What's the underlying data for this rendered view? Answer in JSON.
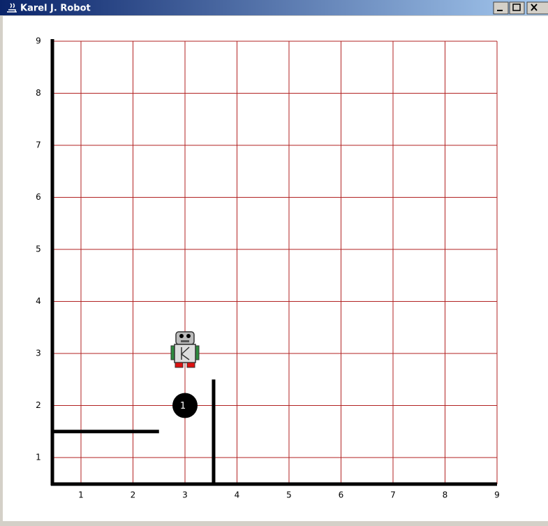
{
  "window": {
    "title": "Karel J. Robot"
  },
  "world": {
    "street_labels": [
      1,
      2,
      3,
      4,
      5,
      6,
      7,
      8,
      9
    ],
    "avenue_labels": [
      1,
      2,
      3,
      4,
      5,
      6,
      7,
      8,
      9
    ],
    "beeper_label": "1"
  }
}
